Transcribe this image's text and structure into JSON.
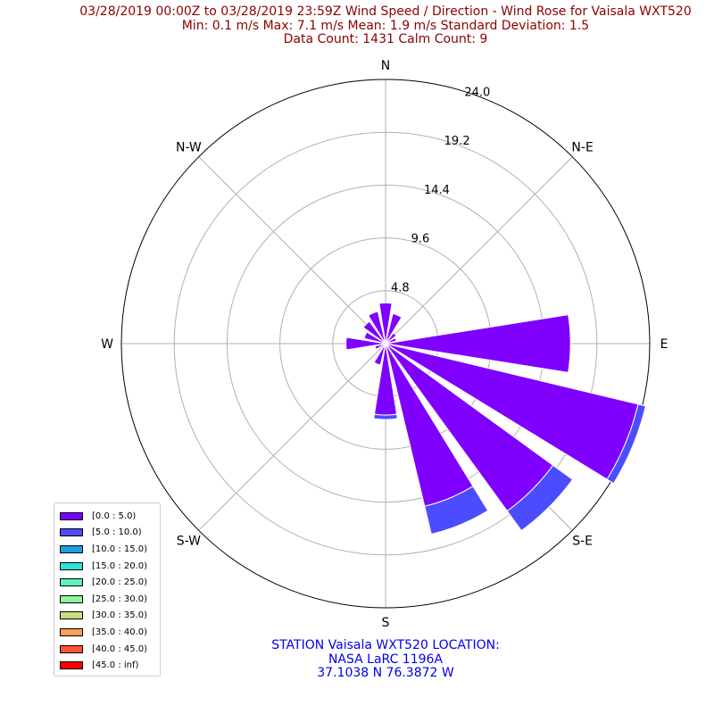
{
  "title": {
    "line1": "03/28/2019 00:00Z to 03/28/2019 23:59Z Wind Speed / Direction - Wind Rose for Vaisala WXT520",
    "line2": "Min: 0.1 m/s   Max: 7.1 m/s   Mean: 1.9 m/s  Standard Deviation: 1.5",
    "line3": "Data Count: 1431  Calm Count:  9"
  },
  "station": {
    "line1": "STATION Vaisala WXT520 LOCATION:",
    "line2": "NASA LaRC 1196A",
    "line3": "37.1038 N 76.3872 W"
  },
  "chart_data": {
    "type": "polar-bar",
    "radial_ticks": [
      "4.8",
      "9.6",
      "14.4",
      "19.2",
      "24.0"
    ],
    "radial_max": 24.0,
    "direction_labels": [
      "N",
      "N-E",
      "E",
      "S-E",
      "S",
      "S-W",
      "W",
      "N-W"
    ],
    "directions_deg": [
      0,
      22.5,
      45,
      67.5,
      90,
      112.5,
      135,
      157.5,
      180,
      202.5,
      225,
      247.5,
      270,
      292.5,
      315,
      337.5
    ],
    "speed_bins": [
      {
        "label": "[0.0 : 5.0)",
        "color": "#7f00ff"
      },
      {
        "label": "[5.0 : 10.0)",
        "color": "#4c4cff"
      },
      {
        "label": "[10.0 : 15.0)",
        "color": "#1a9ee6"
      },
      {
        "label": "[15.0 : 20.0)",
        "color": "#2ee0d8"
      },
      {
        "label": "[20.0 : 25.0)",
        "color": "#5ef2b8"
      },
      {
        "label": "[25.0 : 30.0)",
        "color": "#8ef79a"
      },
      {
        "label": "[30.0 : 35.0)",
        "color": "#c8e07e"
      },
      {
        "label": "[35.0 : 40.0)",
        "color": "#ff9c5a"
      },
      {
        "label": "[40.0 : 45.0)",
        "color": "#ff5430"
      },
      {
        "label": "[45.0 : inf)",
        "color": "#ff0000"
      }
    ],
    "series": [
      {
        "name": "[0.0 : 5.0)",
        "values": [
          3.7,
          2.8,
          1.2,
          1.0,
          16.8,
          23.6,
          18.8,
          15.2,
          6.5,
          2.0,
          0.5,
          1.0,
          3.6,
          2.0,
          2.5,
          3.0
        ]
      },
      {
        "name": "[5.0 : 10.0)",
        "values": [
          0,
          0,
          0,
          0,
          0,
          0.7,
          2.2,
          2.6,
          0.4,
          0,
          0,
          0,
          0,
          0,
          0,
          0
        ]
      }
    ]
  }
}
